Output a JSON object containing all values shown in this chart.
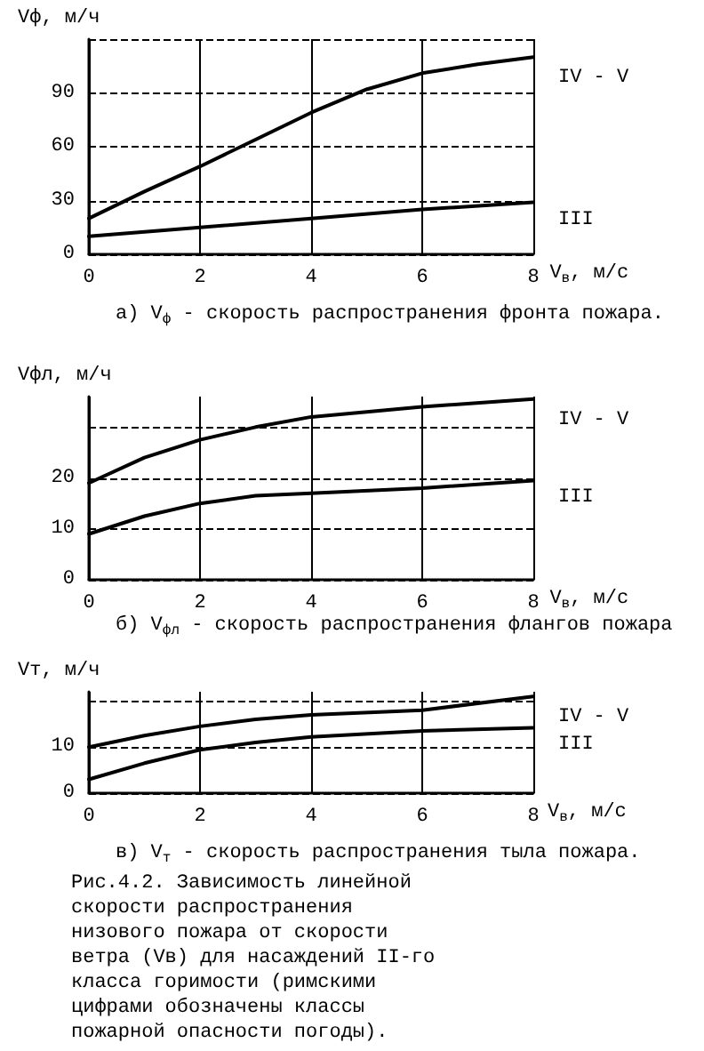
{
  "chart_data": [
    {
      "type": "line",
      "title": "а) V$_{ф}$ - скорость распространения фронта пожара.",
      "xlabel": "V$_{в}$, м/с",
      "ylabel": "Vф, м/ч",
      "xlim": [
        0,
        8
      ],
      "xticks": [
        0,
        2,
        4,
        6,
        8
      ],
      "ylim": [
        0,
        120
      ],
      "yticks": [
        0,
        30,
        60,
        90,
        {
          "value": 120,
          "label": null
        }
      ],
      "grid": true,
      "line_style": "solid",
      "marker": "none",
      "color": "#000000",
      "series": [
        {
          "name": "IV - V",
          "x": [
            0,
            1,
            2,
            3,
            4,
            5,
            6,
            7,
            8
          ],
          "values": [
            20,
            35,
            49,
            64,
            79,
            92,
            101,
            106,
            110
          ]
        },
        {
          "name": "III",
          "x": [
            0,
            2,
            4,
            6,
            8
          ],
          "values": [
            10,
            15,
            20,
            25,
            29
          ]
        }
      ]
    },
    {
      "type": "line",
      "title": "б) V$_{фл}$ - скорость распространения флангов пожара",
      "xlabel": "V$_{в}$, м/с",
      "ylabel": "Vфл, м/ч",
      "xlim": [
        0,
        8
      ],
      "xticks": [
        0,
        2,
        4,
        6,
        8
      ],
      "ylim": [
        0,
        36
      ],
      "yticks": [
        0,
        10,
        20,
        {
          "value": 30,
          "label": null
        }
      ],
      "grid": true,
      "line_style": "solid",
      "marker": "none",
      "color": "#000000",
      "series": [
        {
          "name": "IV - V",
          "x": [
            0,
            1,
            2,
            3,
            4,
            6,
            8
          ],
          "values": [
            19,
            24,
            27.5,
            30,
            32,
            34,
            35.5
          ]
        },
        {
          "name": "III",
          "x": [
            0,
            1,
            2,
            3,
            4,
            6,
            8
          ],
          "values": [
            9,
            12.5,
            15,
            16.5,
            17,
            18,
            19.5
          ]
        }
      ]
    },
    {
      "type": "line",
      "title": "в) V$_{т}$ - скорость распространения тыла пожара.",
      "xlabel": "V$_{в}$, м/с",
      "ylabel": "Vт, м/ч",
      "xlim": [
        0,
        8
      ],
      "xticks": [
        0,
        2,
        4,
        6,
        8
      ],
      "ylim": [
        0,
        22
      ],
      "yticks": [
        0,
        10,
        {
          "value": 20,
          "label": null
        }
      ],
      "grid": true,
      "line_style": "solid",
      "marker": "none",
      "color": "#000000",
      "series": [
        {
          "name": "IV - V",
          "x": [
            0,
            1,
            2,
            3,
            4,
            6,
            8
          ],
          "values": [
            10,
            12.5,
            14.5,
            16,
            17,
            18,
            21
          ]
        },
        {
          "name": "III",
          "x": [
            0,
            1,
            2,
            3,
            4,
            6,
            8
          ],
          "values": [
            3,
            6.5,
            9.4,
            11,
            12.2,
            13.5,
            14.2
          ]
        }
      ],
      "annotations": [
        "Рис.4.2. Зависимость линейной скорости распространения низового пожара от скорости ветра (Vв) для насаждений II-го класса горимости (римскими цифрами обозначены классы пожарной опасности погоды)."
      ]
    }
  ]
}
